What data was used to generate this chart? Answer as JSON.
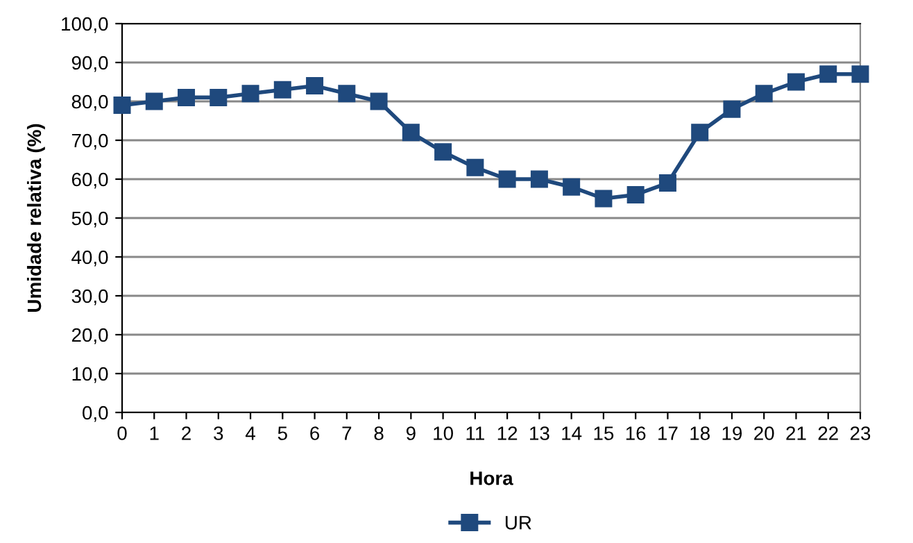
{
  "chart_data": {
    "type": "line",
    "xlabel": "Hora",
    "ylabel": "Umidade relativa (%)",
    "x": [
      0,
      1,
      2,
      3,
      4,
      5,
      6,
      7,
      8,
      9,
      10,
      11,
      12,
      13,
      14,
      15,
      16,
      17,
      18,
      19,
      20,
      21,
      22,
      23
    ],
    "series": [
      {
        "name": "UR",
        "color": "#1f497d",
        "values": [
          79,
          80,
          81,
          81,
          82,
          83,
          84,
          82,
          80,
          72,
          67,
          63,
          60,
          60,
          58,
          55,
          56,
          59,
          72,
          78,
          82,
          85,
          87,
          87
        ]
      }
    ],
    "xlim": [
      0,
      23
    ],
    "xticks": [
      0,
      1,
      2,
      3,
      4,
      5,
      6,
      7,
      8,
      9,
      10,
      11,
      12,
      13,
      14,
      15,
      16,
      17,
      18,
      19,
      20,
      21,
      22,
      23
    ],
    "ylim": [
      0,
      100
    ],
    "yticks": [
      {
        "value": 0,
        "label": "0,0"
      },
      {
        "value": 10,
        "label": "10,0"
      },
      {
        "value": 20,
        "label": "20,0"
      },
      {
        "value": 30,
        "label": "30,0"
      },
      {
        "value": 40,
        "label": "40,0"
      },
      {
        "value": 50,
        "label": "50,0"
      },
      {
        "value": 60,
        "label": "60,0"
      },
      {
        "value": 70,
        "label": "70,0"
      },
      {
        "value": 80,
        "label": "80,0"
      },
      {
        "value": 90,
        "label": "90,0"
      },
      {
        "value": 100,
        "label": "100,0"
      }
    ],
    "grid": "y",
    "legend": "bottom",
    "marker": "square",
    "line_style": "solid"
  }
}
